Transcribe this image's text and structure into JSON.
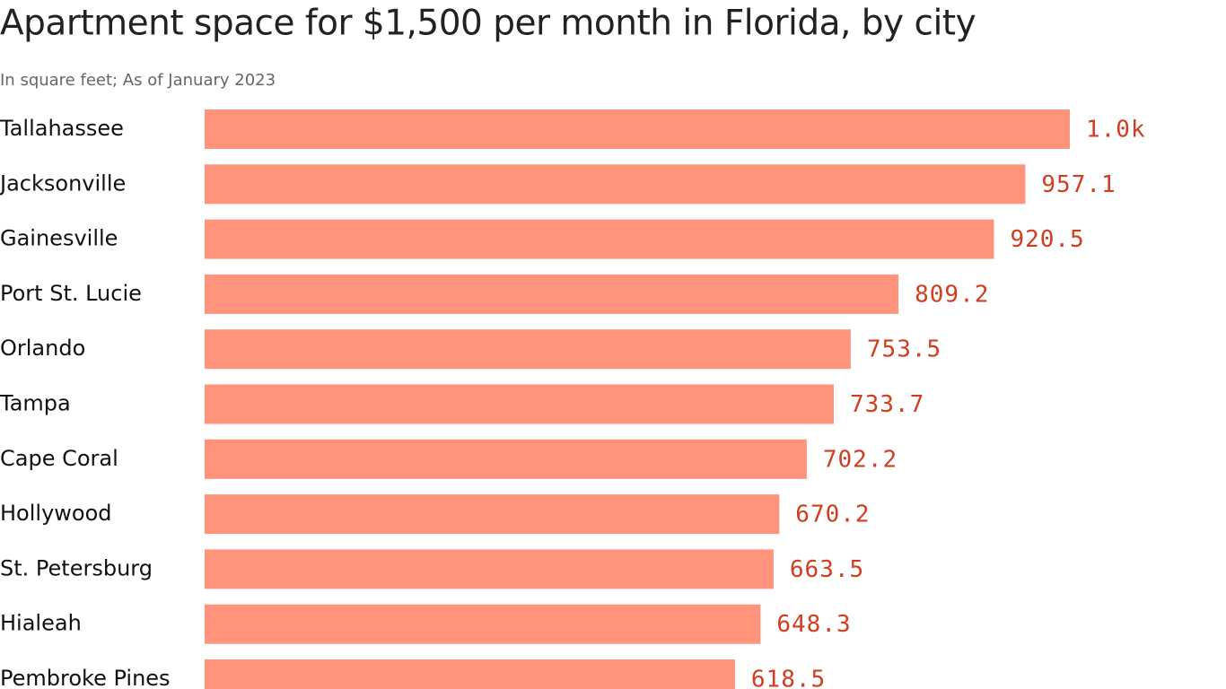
{
  "chart_data": {
    "type": "bar",
    "orientation": "horizontal",
    "title": "Apartment space for $1,500 per month in Florida, by city",
    "subtitle": "In square feet; As of January 2023",
    "categories": [
      "Tallahassee",
      "Jacksonville",
      "Gainesville",
      "Port St. Lucie",
      "Orlando",
      "Tampa",
      "Cape Coral",
      "Hollywood",
      "St. Petersburg",
      "Hialeah",
      "Pembroke Pines"
    ],
    "values": [
      1009,
      957.1,
      920.5,
      809.2,
      753.5,
      733.7,
      702.2,
      670.2,
      663.5,
      648.3,
      618.5
    ],
    "value_labels": [
      "1.0k",
      "957.1",
      "920.5",
      "809.2",
      "753.5",
      "733.7",
      "702.2",
      "670.2",
      "663.5",
      "648.3",
      "618.5"
    ],
    "color": "#ff937c",
    "label_color": "#d13d1e"
  }
}
